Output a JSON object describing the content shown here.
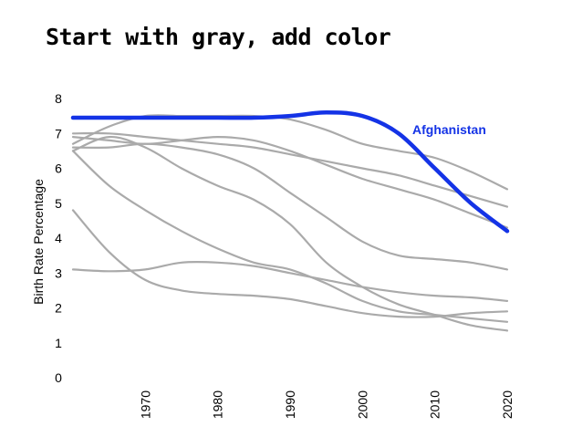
{
  "title": "Start with gray, add color",
  "chart_data": {
    "type": "line",
    "title": "Start with gray, add color",
    "xlabel": "",
    "ylabel": "Birth Rate Percentage",
    "xlim": [
      1960,
      2020
    ],
    "ylim": [
      0,
      8
    ],
    "x_ticks": [
      1970,
      1980,
      1990,
      2000,
      2010,
      2020
    ],
    "y_ticks": [
      0,
      1,
      2,
      3,
      4,
      5,
      6,
      7,
      8
    ],
    "grid": false,
    "highlight_color": "#1433e6",
    "context_color": "#aaaaaa",
    "x": [
      1960,
      1965,
      1970,
      1975,
      1980,
      1985,
      1990,
      1995,
      2000,
      2005,
      2010,
      2015,
      2020
    ],
    "series": [
      {
        "name": "",
        "highlight": false,
        "values": [
          7.0,
          7.0,
          6.9,
          6.8,
          6.7,
          6.6,
          6.4,
          6.2,
          6.0,
          5.8,
          5.5,
          5.2,
          4.9
        ]
      },
      {
        "name": "",
        "highlight": false,
        "values": [
          6.7,
          7.2,
          7.5,
          7.5,
          7.5,
          7.5,
          7.4,
          7.1,
          6.7,
          6.5,
          6.3,
          5.9,
          5.4
        ]
      },
      {
        "name": "",
        "highlight": false,
        "values": [
          6.9,
          6.8,
          6.7,
          6.8,
          6.9,
          6.8,
          6.5,
          6.1,
          5.7,
          5.4,
          5.1,
          4.7,
          4.3
        ]
      },
      {
        "name": "",
        "highlight": false,
        "values": [
          6.6,
          6.6,
          6.7,
          6.6,
          6.4,
          6.0,
          5.3,
          4.6,
          3.9,
          3.5,
          3.4,
          3.3,
          3.1
        ]
      },
      {
        "name": "",
        "highlight": false,
        "values": [
          6.5,
          6.9,
          6.6,
          6.0,
          5.5,
          5.1,
          4.4,
          3.3,
          2.6,
          2.1,
          1.8,
          1.5,
          1.35
        ]
      },
      {
        "name": "",
        "highlight": false,
        "values": [
          6.5,
          5.5,
          4.8,
          4.2,
          3.7,
          3.3,
          3.1,
          2.7,
          2.2,
          1.9,
          1.8,
          1.7,
          1.6
        ]
      },
      {
        "name": "",
        "highlight": false,
        "values": [
          4.8,
          3.6,
          2.8,
          2.5,
          2.4,
          2.35,
          2.25,
          2.05,
          1.85,
          1.75,
          1.75,
          1.85,
          1.9
        ]
      },
      {
        "name": "",
        "highlight": false,
        "values": [
          3.1,
          3.05,
          3.1,
          3.3,
          3.3,
          3.2,
          3.0,
          2.8,
          2.6,
          2.45,
          2.35,
          2.3,
          2.2
        ]
      },
      {
        "name": "Afghanistan",
        "highlight": true,
        "values": [
          7.45,
          7.45,
          7.45,
          7.45,
          7.45,
          7.45,
          7.5,
          7.6,
          7.5,
          7.0,
          6.0,
          5.0,
          4.2
        ]
      }
    ]
  }
}
